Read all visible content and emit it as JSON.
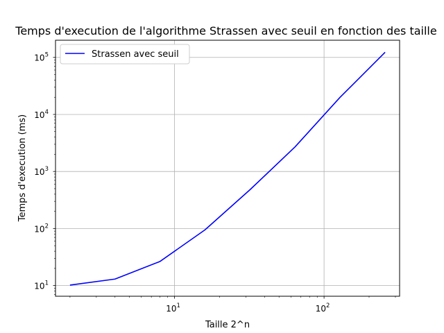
{
  "chart_data": {
    "type": "line",
    "title": "Temps d'execution de l'algorithme Strassen avec seuil en fonction des taille",
    "xlabel": "Taille 2^n",
    "ylabel": "Temps d'execution (ms)",
    "xscale": "log",
    "yscale": "log",
    "xlim": [
      1.6,
      320
    ],
    "ylim": [
      6.5,
      200000
    ],
    "grid": true,
    "legend": "top-left",
    "x_ticks": [
      {
        "value": 10,
        "base": "10",
        "exp": "1"
      },
      {
        "value": 100,
        "base": "10",
        "exp": "2"
      }
    ],
    "y_ticks": [
      {
        "value": 10,
        "base": "10",
        "exp": "1"
      },
      {
        "value": 100,
        "base": "10",
        "exp": "2"
      },
      {
        "value": 1000,
        "base": "10",
        "exp": "3"
      },
      {
        "value": 10000,
        "base": "10",
        "exp": "4"
      },
      {
        "value": 100000,
        "base": "10",
        "exp": "5"
      }
    ],
    "series": [
      {
        "name": "Strassen avec seuil",
        "color": "#0000ff",
        "x": [
          2,
          4,
          8,
          16,
          32,
          64,
          128,
          256
        ],
        "y": [
          10.2,
          13,
          26.5,
          95,
          480,
          2700,
          20000,
          123000
        ]
      }
    ]
  }
}
